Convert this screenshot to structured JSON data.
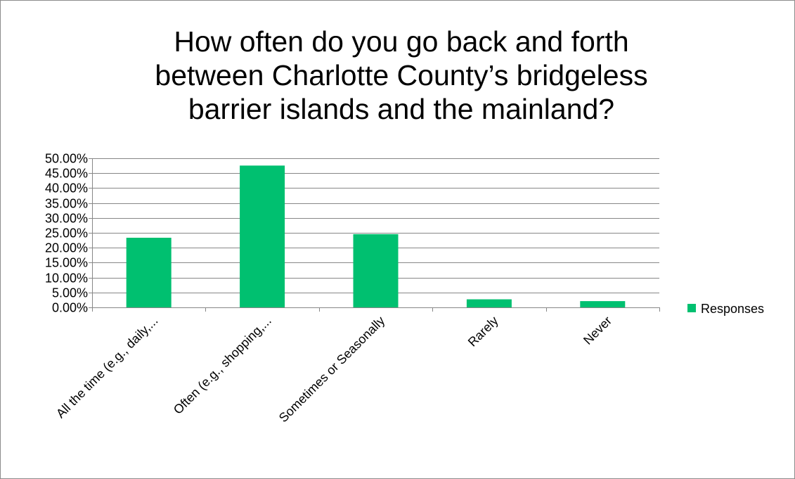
{
  "chart_data": {
    "type": "bar",
    "title": "How often do you go back and forth between Charlotte County’s bridgeless barrier islands and the mainland?",
    "title_lines": [
      "How often do you go back and forth",
      "between Charlotte County’s bridgeless",
      "barrier islands and the mainland?"
    ],
    "categories": [
      "All the time (e.g., daily,...",
      "Often (e.g., shopping,...",
      "Sometimes or Seasonally",
      "Rarely",
      "Never"
    ],
    "series": [
      {
        "name": "Responses",
        "values": [
          0.2335,
          0.4755,
          0.2455,
          0.027,
          0.021
        ],
        "color": "#00c070"
      }
    ],
    "ylim": [
      0,
      0.5
    ],
    "ytick_step": 0.05,
    "ytick_labels": [
      "0.00%",
      "5.00%",
      "10.00%",
      "15.00%",
      "20.00%",
      "25.00%",
      "30.00%",
      "35.00%",
      "40.00%",
      "45.00%",
      "50.00%"
    ],
    "xlabel": "",
    "ylabel": "",
    "grid": true,
    "gridline_color": "#878787",
    "legend_position": "right"
  }
}
